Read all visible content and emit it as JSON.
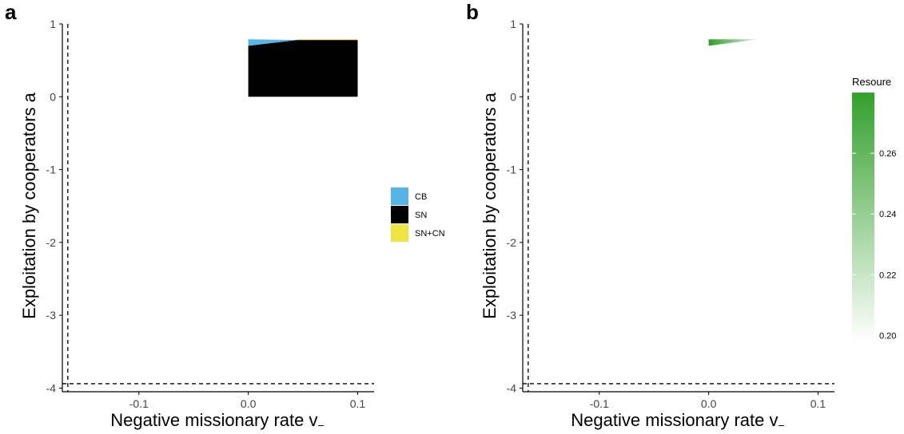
{
  "chart_data": [
    {
      "panel": "a",
      "type": "area",
      "xlabel": "Negative missionary rate v",
      "xlabel_subscript": "−",
      "ylabel": "Exploitation by cooperators a",
      "xlim": [
        -0.17,
        0.115
      ],
      "ylim": [
        -4.05,
        1.0
      ],
      "x_ticks": [
        -0.1,
        0.0,
        0.1
      ],
      "x_tick_labels": [
        "-0.1",
        "0.0",
        "0.1"
      ],
      "y_ticks": [
        -4,
        -3,
        -2,
        -1,
        0,
        1
      ],
      "y_tick_labels": [
        "-4",
        "-3",
        "-2",
        "-1",
        "0",
        "1"
      ],
      "dashed_lines": {
        "vertical_x": -0.165,
        "horizontal_y": -3.94
      },
      "grid": false,
      "legend": {
        "placement": "right",
        "entries": [
          {
            "label": "CB",
            "color": "#56b4e9"
          },
          {
            "label": "SN",
            "color": "#000000"
          },
          {
            "label": "SN+CN",
            "color": "#f0e442"
          }
        ]
      },
      "regions": [
        {
          "label": "SN",
          "color": "#000000",
          "polygon": [
            [
              0.0,
              0.0
            ],
            [
              0.1,
              0.0
            ],
            [
              0.1,
              0.78
            ],
            [
              0.045,
              0.78
            ],
            [
              0.0,
              0.7
            ]
          ]
        },
        {
          "label": "CB",
          "color": "#56b4e9",
          "polygon": [
            [
              0.0,
              0.7
            ],
            [
              0.045,
              0.78
            ],
            [
              0.0,
              0.79
            ]
          ]
        },
        {
          "label": "SN+CN",
          "color": "#f0e442",
          "polygon": [
            [
              0.045,
              0.78
            ],
            [
              0.1,
              0.78
            ],
            [
              0.1,
              0.79
            ],
            [
              0.045,
              0.79
            ]
          ]
        }
      ]
    },
    {
      "panel": "b",
      "type": "heatmap",
      "xlabel": "Negative missionary rate v",
      "xlabel_subscript": "−",
      "ylabel": "Exploitation by cooperators a",
      "xlim": [
        -0.17,
        0.115
      ],
      "ylim": [
        -4.05,
        1.0
      ],
      "x_ticks": [
        -0.1,
        0.0,
        0.1
      ],
      "x_tick_labels": [
        "-0.1",
        "0.0",
        "0.1"
      ],
      "y_ticks": [
        -4,
        -3,
        -2,
        -1,
        0,
        1
      ],
      "y_tick_labels": [
        "-4",
        "-3",
        "-2",
        "-1",
        "0",
        "1"
      ],
      "dashed_lines": {
        "vertical_x": -0.165,
        "horizontal_y": -3.94
      },
      "grid": false,
      "colorbar": {
        "title": "Resoure",
        "placement": "right",
        "range": [
          0.198,
          0.28
        ],
        "ticks": [
          0.2,
          0.22,
          0.24,
          0.26
        ],
        "tick_labels": [
          "0.20",
          "0.22",
          "0.24",
          "0.26"
        ],
        "color_low": "#ffffff",
        "color_high": "#33a02c"
      },
      "regions": [
        {
          "label": "resource",
          "value": 0.27,
          "color": "#3da63a",
          "polygon": [
            [
              0.0,
              0.7
            ],
            [
              0.045,
              0.79
            ],
            [
              0.0,
              0.79
            ]
          ]
        }
      ]
    }
  ]
}
